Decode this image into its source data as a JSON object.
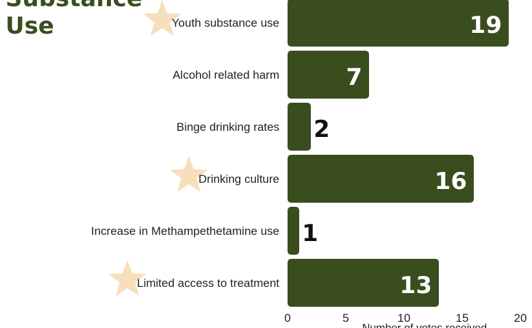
{
  "heading": {
    "line1": "Substance",
    "line2": "Use"
  },
  "colors": {
    "bar": "#3a4d1f",
    "heading": "#3a4d1f",
    "star": "#f6dfbb",
    "inside_label": "#ffffff",
    "outside_label": "#111111"
  },
  "chart_data": {
    "type": "bar",
    "orientation": "horizontal",
    "title": "",
    "categories": [
      "Youth substance use",
      "Alcohol related harm",
      "Binge drinking rates",
      "Drinking culture",
      "Increase in Methampethetamine use",
      "Limited access to treatment"
    ],
    "values": [
      19,
      7,
      2,
      16,
      1,
      13
    ],
    "starred": [
      true,
      false,
      false,
      true,
      false,
      true
    ],
    "xlabel": "Number of votes received",
    "ylabel": "",
    "xlim": [
      0,
      20
    ],
    "xticks": [
      0,
      5,
      10,
      15,
      20
    ],
    "grid": false,
    "legend": "none"
  }
}
